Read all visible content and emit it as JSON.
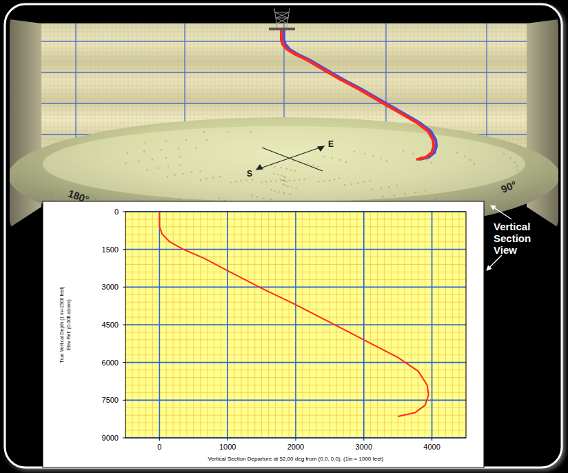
{
  "chart_data": {
    "type": "line",
    "xlabel": "Vertical Section Departure at 52.00 deg from (0.0, 0.0). (1in = 1000 feet)",
    "ylabel": [
      "True Vertical Depth (1 in=1500 feet)",
      "Elev Ref: (0.00ft above)"
    ],
    "x": [
      0,
      0,
      0,
      40,
      150,
      350,
      650,
      1000,
      1500,
      2000,
      2500,
      3000,
      3500,
      3800,
      3930,
      3950,
      3900,
      3750,
      3500
    ],
    "values": [
      0,
      300,
      600,
      900,
      1200,
      1500,
      1850,
      2350,
      3050,
      3700,
      4400,
      5100,
      5800,
      6350,
      6900,
      7300,
      7700,
      8000,
      8150
    ],
    "color": "#ff2a1a",
    "xlim": [
      -500,
      4500
    ],
    "xticks": [
      0,
      1000,
      2000,
      3000,
      4000
    ],
    "ylim": [
      0,
      9000
    ],
    "yticks": [
      0,
      1500,
      3000,
      4500,
      6000,
      7500,
      9000
    ],
    "grid": true
  },
  "scene": {
    "compass": [
      "S",
      "E"
    ],
    "bearings": [
      "180°",
      "90°"
    ]
  },
  "annotation": {
    "lines": [
      "Vertical",
      "Section",
      "View"
    ]
  }
}
